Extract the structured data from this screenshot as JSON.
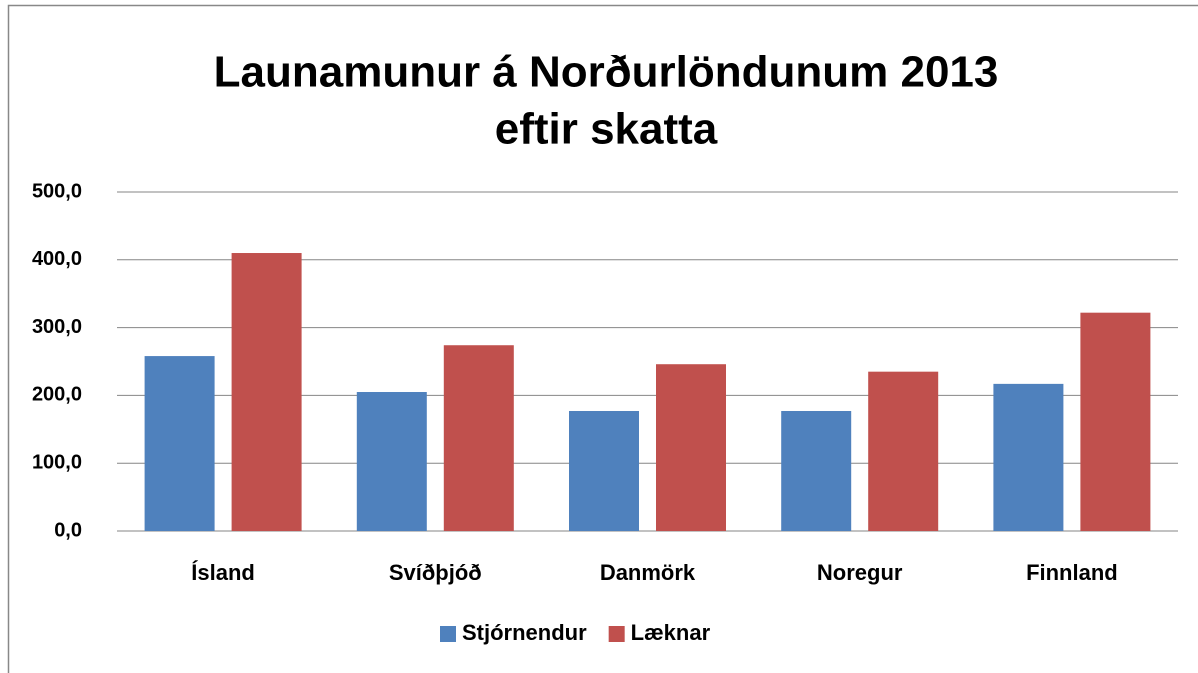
{
  "chart_data": {
    "type": "bar",
    "title": [
      "Launamunur á Norðurlöndunum 2013",
      "eftir skatta"
    ],
    "categories": [
      "Ísland",
      "Svíðþjóð",
      "Danmörk",
      "Noregur",
      "Finnland"
    ],
    "series": [
      {
        "name": "Stjórnendur",
        "color": "#4f81bd",
        "values": [
          258,
          205,
          177,
          177,
          217
        ]
      },
      {
        "name": "Læknar",
        "color": "#c0504d",
        "values": [
          410,
          274,
          246,
          235,
          322
        ]
      }
    ],
    "ylim": [
      0,
      500
    ],
    "yticks": [
      {
        "value": 0,
        "label": "0,0"
      },
      {
        "value": 100,
        "label": "100,0"
      },
      {
        "value": 200,
        "label": "200,0"
      },
      {
        "value": 300,
        "label": "300,0"
      },
      {
        "value": 400,
        "label": "400,0"
      },
      {
        "value": 500,
        "label": "500,0"
      }
    ],
    "grid": true,
    "legend": "bottom"
  }
}
